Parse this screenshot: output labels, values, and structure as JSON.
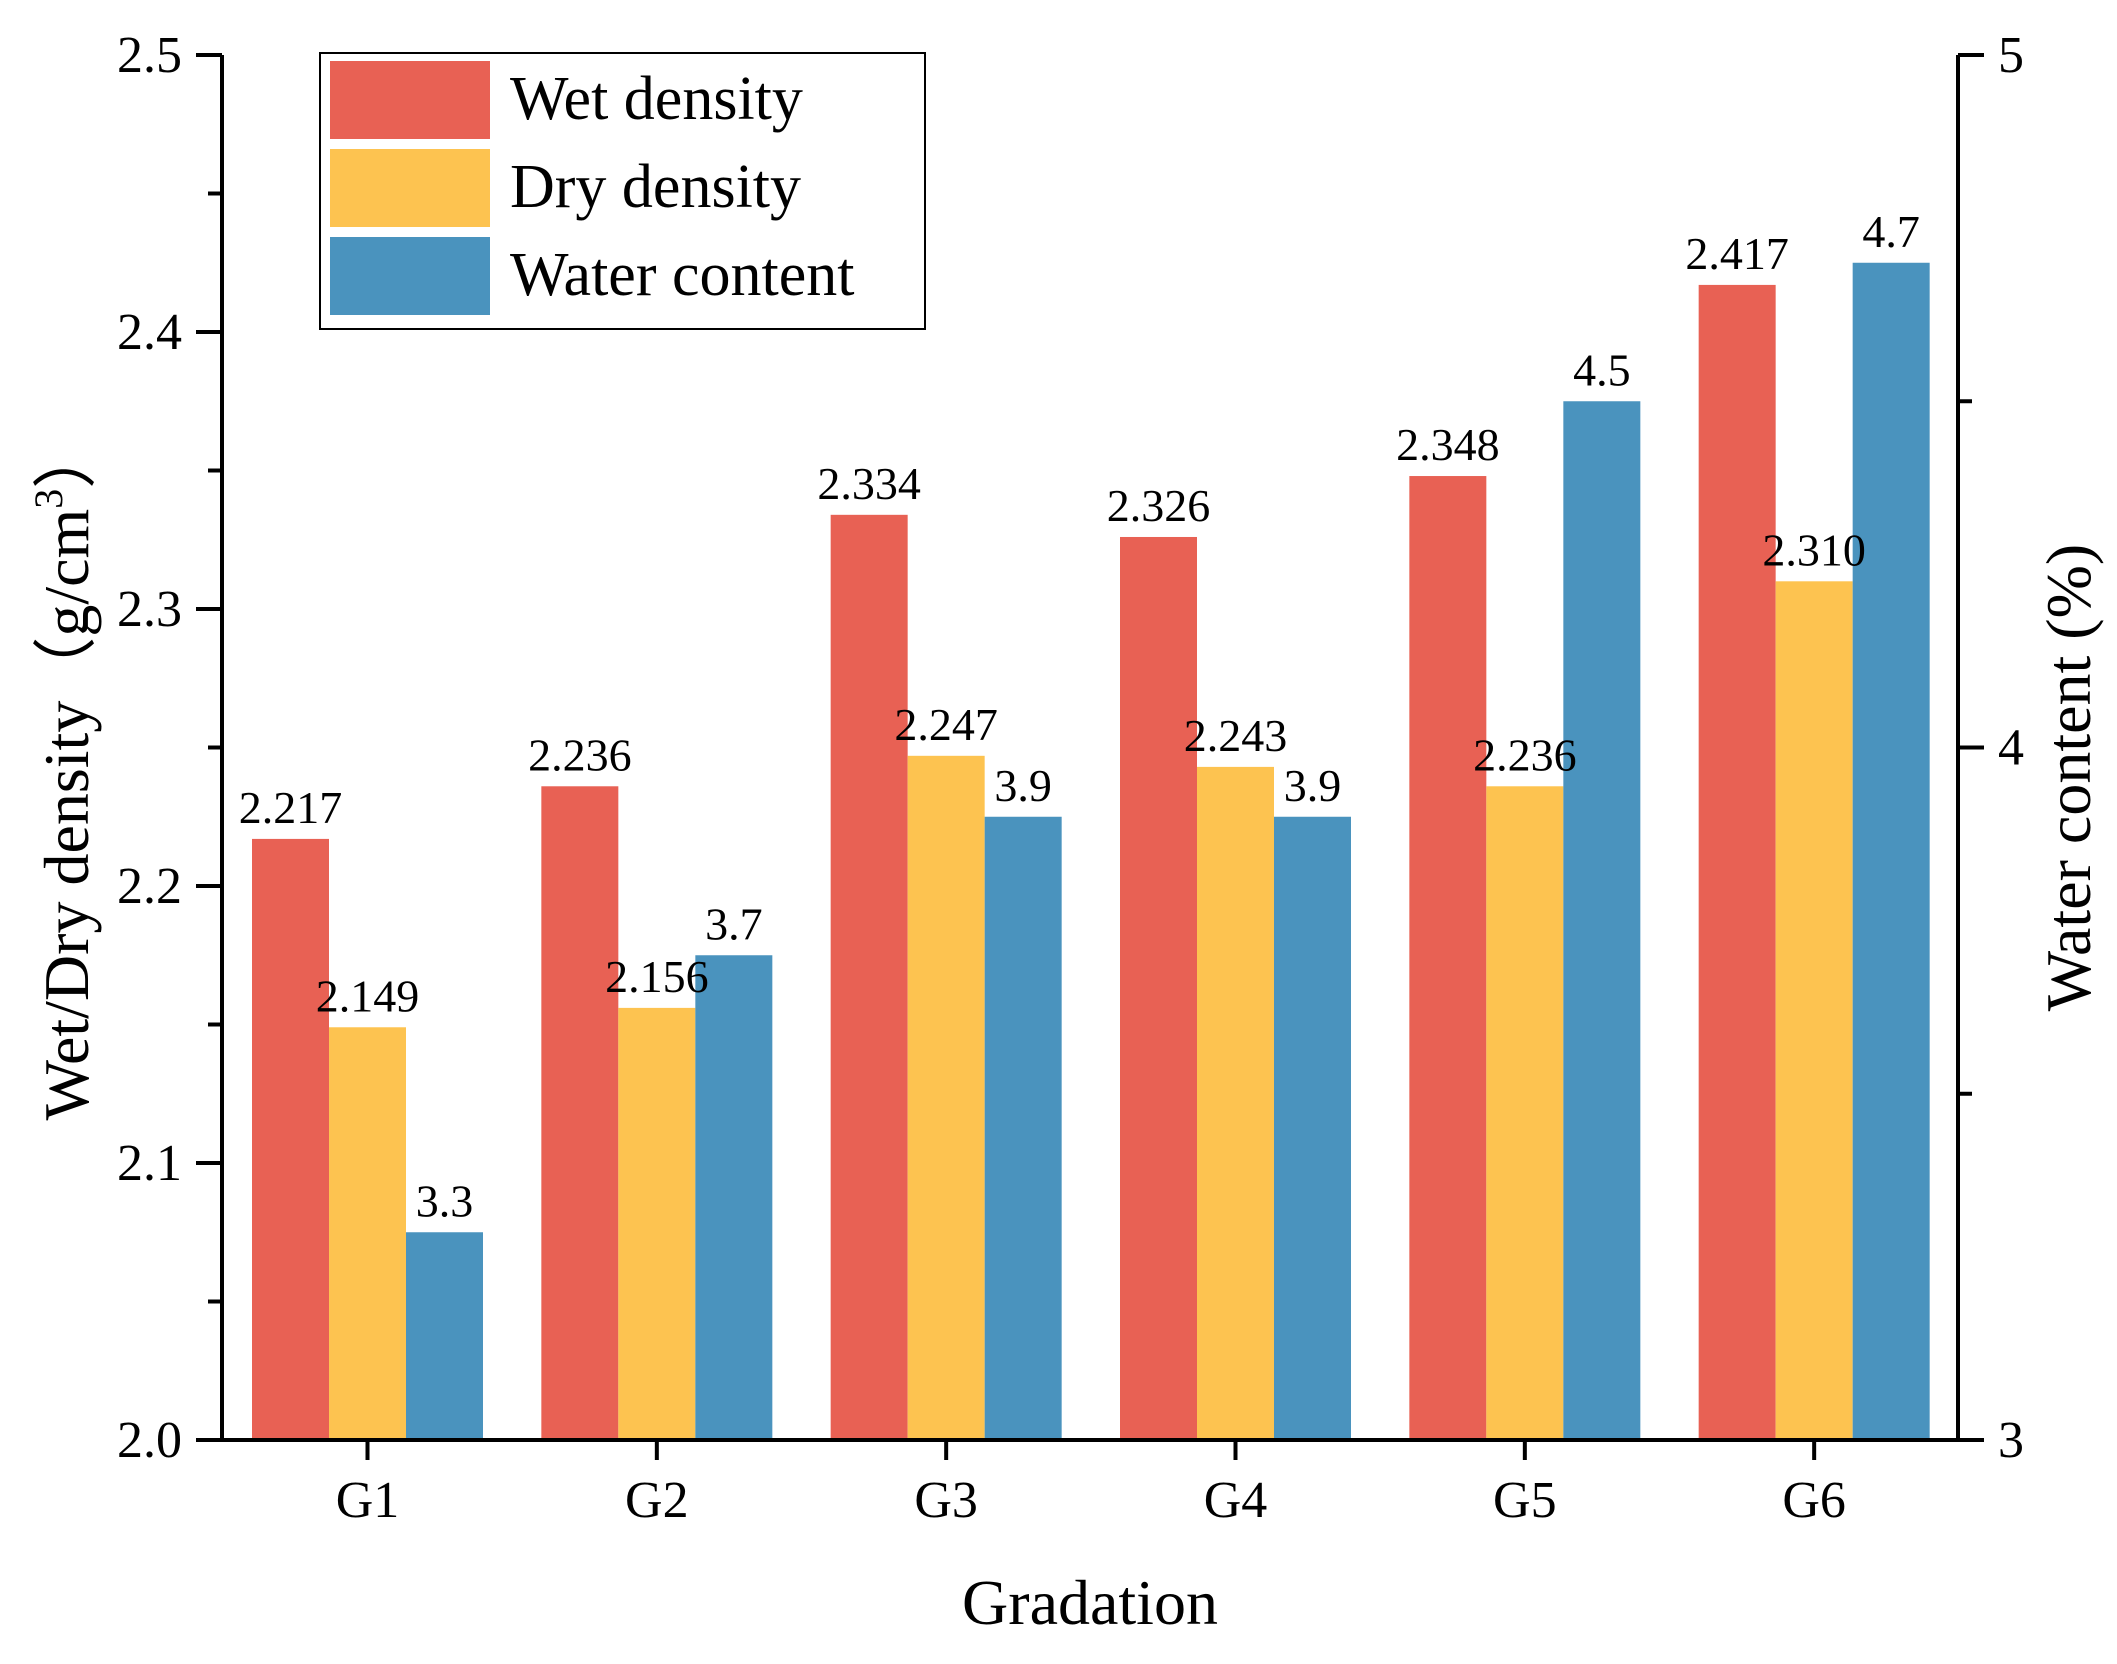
{
  "chart_data": {
    "type": "bar",
    "title": "",
    "xlabel": "Gradation",
    "ylabel": "Wet/Dry density（g/cm³）",
    "ylabel_parts": {
      "main": "Wet/Dry density（g/cm",
      "sup": "3",
      "close": "）"
    },
    "y2label": "Water content (%)",
    "categories": [
      "G1",
      "G2",
      "G3",
      "G4",
      "G5",
      "G6"
    ],
    "ylim": [
      2.0,
      2.5
    ],
    "y2lim": [
      3,
      5
    ],
    "yticks": [
      "2.0",
      "2.1",
      "2.2",
      "2.3",
      "2.4",
      "2.5"
    ],
    "y2ticks": [
      "3",
      "4",
      "5"
    ],
    "legend_position": "top-left",
    "series": [
      {
        "name": "Wet density",
        "axis": "left",
        "color": "#E86154",
        "values": [
          2.217,
          2.236,
          2.334,
          2.326,
          2.348,
          2.417
        ],
        "labels": [
          "2.217",
          "2.236",
          "2.334",
          "2.326",
          "2.348",
          "2.417"
        ]
      },
      {
        "name": "Dry density",
        "axis": "left",
        "color": "#FDC350",
        "values": [
          2.149,
          2.156,
          2.247,
          2.243,
          2.236,
          2.31
        ],
        "labels": [
          "2.149",
          "2.156",
          "2.247",
          "2.243",
          "2.236",
          "2.310"
        ]
      },
      {
        "name": "Water content",
        "axis": "right",
        "color": "#4A93BE",
        "values": [
          3.3,
          3.7,
          3.9,
          3.9,
          4.5,
          4.7
        ],
        "labels": [
          "3.3",
          "3.7",
          "3.9",
          "3.9",
          "4.5",
          "4.7"
        ]
      }
    ]
  }
}
